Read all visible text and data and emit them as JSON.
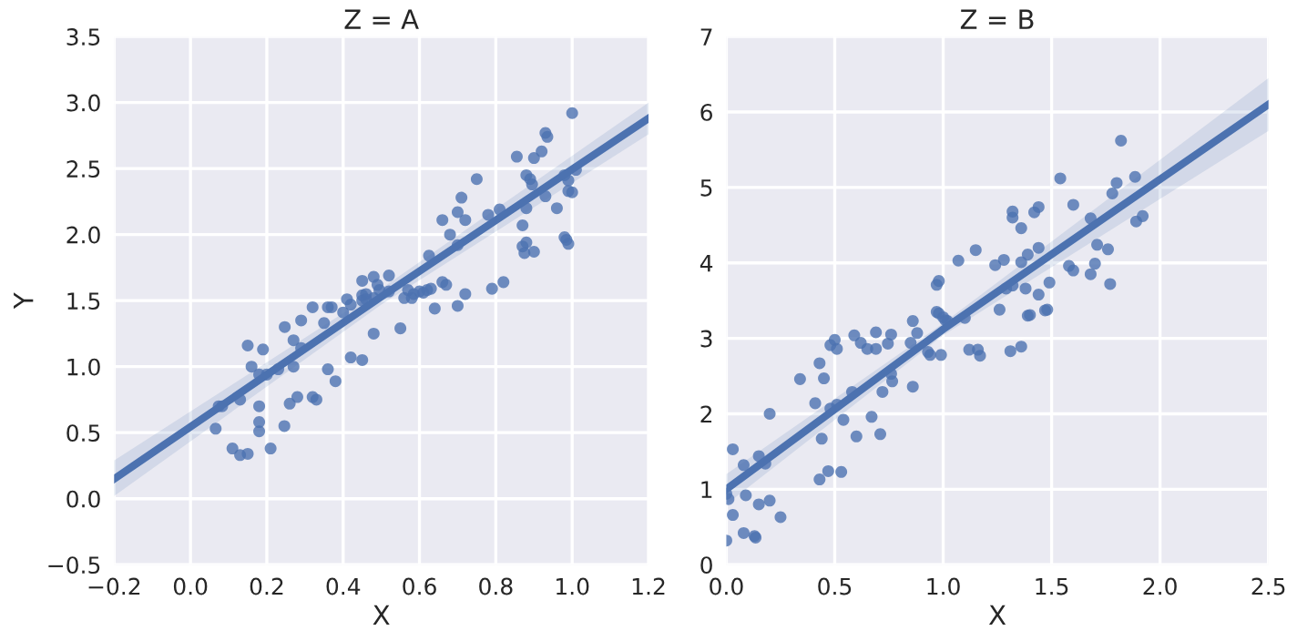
{
  "chart_data": [
    {
      "type": "scatter",
      "title": "Z = A",
      "xlabel": "X",
      "ylabel": "Y",
      "xlim": [
        -0.2,
        1.2
      ],
      "xticks": [
        {
          "value": -0.2,
          "label": "−0.2"
        },
        {
          "value": 0,
          "label": "0.0"
        },
        0.2,
        0.4,
        0.6,
        0.8,
        {
          "value": 1,
          "label": "1.0"
        },
        1.2
      ],
      "ylim": [
        -0.5,
        3.5
      ],
      "yticks": [
        {
          "value": -0.5,
          "label": "−0.5"
        },
        {
          "value": 0,
          "label": "0.0"
        },
        0.5,
        {
          "value": 1,
          "label": "1.0"
        },
        1.5,
        {
          "value": 2,
          "label": "2.0"
        },
        2.5,
        {
          "value": 3,
          "label": "3.0"
        },
        3.5
      ],
      "grid": true,
      "marker": "circle",
      "series": [
        {
          "color": "#4c72b0",
          "x": [
            0.074,
            0.083,
            0.066,
            0.11,
            0.13,
            0.15,
            0.15,
            0.16,
            0.19,
            0.18,
            0.13,
            0.18,
            0.18,
            0.18,
            0.2,
            0.21,
            0.23,
            0.247,
            0.246,
            0.27,
            0.26,
            0.28,
            0.29,
            0.29,
            0.27,
            0.32,
            0.33,
            0.32,
            0.35,
            0.36,
            0.37,
            0.36,
            0.38,
            0.4,
            0.41,
            0.42,
            0.42,
            0.45,
            0.45,
            0.46,
            0.48,
            0.48,
            0.55,
            0.56,
            0.58,
            0.585,
            0.61,
            0.64,
            0.72,
            1.0,
            0.93,
            0.935,
            0.92,
            0.9,
            0.855,
            0.75,
            0.71,
            0.88,
            0.89,
            0.895,
            1.01,
            0.98,
            0.99,
            0.99,
            1.0,
            0.93,
            0.96,
            0.88,
            0.87,
            0.81,
            0.78,
            0.66,
            0.7,
            0.72,
            0.68,
            0.7,
            0.98,
            0.985,
            0.99,
            0.88,
            0.9,
            0.87,
            0.875,
            0.625,
            0.63,
            0.66,
            0.67,
            0.79,
            0.82,
            0.7,
            0.48,
            0.49,
            0.495,
            0.52,
            0.45,
            0.45,
            0.46,
            0.52,
            0.57,
            0.6,
            0.62
          ],
          "values": [
            0.7,
            0.7,
            0.53,
            0.38,
            0.33,
            0.34,
            1.16,
            1.0,
            1.13,
            0.94,
            0.75,
            0.7,
            0.58,
            0.51,
            0.94,
            0.38,
            0.98,
            1.3,
            0.55,
            1.2,
            0.72,
            0.77,
            1.35,
            1.14,
            1.0,
            0.77,
            0.75,
            1.45,
            1.33,
            1.45,
            1.45,
            0.98,
            0.89,
            1.41,
            1.51,
            1.07,
            1.47,
            1.05,
            1.5,
            1.55,
            1.25,
            1.52,
            1.29,
            1.52,
            1.52,
            1.55,
            1.56,
            1.44,
            1.55,
            2.92,
            2.77,
            2.74,
            2.63,
            2.58,
            2.59,
            2.42,
            2.28,
            2.45,
            2.42,
            2.38,
            2.49,
            2.45,
            2.41,
            2.33,
            2.32,
            2.29,
            2.2,
            2.2,
            2.07,
            2.19,
            2.15,
            2.11,
            2.17,
            2.11,
            2.0,
            1.92,
            1.98,
            1.96,
            1.93,
            1.94,
            1.87,
            1.91,
            1.86,
            1.84,
            1.59,
            1.64,
            1.62,
            1.59,
            1.64,
            1.46,
            1.68,
            1.62,
            1.58,
            1.69,
            1.65,
            1.54,
            1.51,
            1.57,
            1.58,
            1.57,
            1.58
          ]
        },
        {
          "type": "line",
          "color": "#4c72b0",
          "marker": "none",
          "x": [
            -0.2,
            0.5,
            1.2
          ],
          "values": [
            0.15,
            1.53,
            2.88
          ],
          "lower": [
            0.02,
            1.47,
            2.76
          ],
          "upper": [
            0.29,
            1.59,
            3.0
          ]
        }
      ]
    },
    {
      "type": "scatter",
      "title": "Z = B",
      "xlabel": "X",
      "xlim": [
        0.0,
        2.5
      ],
      "xticks": [
        {
          "value": 0,
          "label": "0.0"
        },
        0.5,
        {
          "value": 1,
          "label": "1.0"
        },
        1.5,
        {
          "value": 2,
          "label": "2.0"
        },
        2.5
      ],
      "ylim": [
        0,
        7
      ],
      "yticks": [
        0,
        1,
        2,
        3,
        4,
        5,
        6,
        7
      ],
      "grid": true,
      "marker": "circle",
      "series": [
        {
          "color": "#4c72b0",
          "x": [
            1.82,
            1.885,
            1.8,
            1.78,
            1.92,
            1.89,
            1.54,
            1.6,
            1.44,
            1.42,
            1.32,
            1.32,
            1.36,
            1.68,
            1.71,
            1.76,
            1.44,
            1.39,
            1.15,
            1.07,
            1.28,
            1.36,
            1.24,
            1.58,
            1.6,
            1.7,
            1.68,
            1.77,
            1.49,
            1.38,
            1.44,
            1.32,
            1.29,
            0.97,
            0.98,
            1.26,
            1.4,
            1.48,
            0.97,
            1.0,
            1.47,
            1.39,
            1.36,
            1.31,
            0.98,
            1.01,
            1.02,
            1.1,
            1.12,
            1.16,
            1.17,
            0.99,
            0.94,
            0.93,
            0.86,
            0.88,
            0.85,
            0.86,
            0.76,
            0.745,
            0.69,
            0.69,
            0.65,
            0.62,
            0.59,
            0.5,
            0.48,
            0.51,
            0.76,
            0.765,
            0.72,
            0.58,
            0.67,
            0.71,
            0.6,
            0.54,
            0.51,
            0.48,
            0.44,
            0.45,
            0.43,
            0.41,
            0.34,
            0.2,
            0.47,
            0.53,
            0.43,
            0.15,
            0.18,
            0.08,
            0.03,
            0.0,
            0.01,
            0.15,
            0.2,
            0.09,
            0.03,
            0.25,
            0.08,
            0.13,
            0.135,
            0.0
          ],
          "values": [
            5.62,
            5.14,
            5.06,
            4.92,
            4.62,
            4.55,
            5.12,
            4.77,
            4.74,
            4.67,
            4.68,
            4.6,
            4.46,
            4.59,
            4.24,
            4.18,
            4.2,
            4.11,
            4.17,
            4.03,
            4.04,
            4.01,
            3.97,
            3.96,
            3.9,
            3.99,
            3.85,
            3.72,
            3.74,
            3.66,
            3.58,
            3.7,
            3.66,
            3.71,
            3.76,
            3.38,
            3.31,
            3.38,
            3.35,
            3.28,
            3.37,
            3.3,
            2.89,
            2.83,
            3.33,
            3.24,
            3.23,
            3.27,
            2.85,
            2.85,
            2.77,
            2.78,
            2.78,
            2.82,
            3.23,
            3.07,
            2.94,
            2.36,
            3.05,
            2.93,
            3.08,
            2.86,
            2.86,
            2.94,
            3.04,
            2.98,
            2.91,
            2.86,
            2.53,
            2.43,
            2.29,
            2.29,
            1.96,
            1.73,
            1.7,
            1.92,
            2.12,
            2.07,
            1.67,
            2.47,
            2.67,
            2.14,
            2.46,
            2.0,
            1.24,
            1.23,
            1.13,
            1.44,
            1.34,
            1.32,
            1.53,
            0.94,
            0.87,
            0.8,
            0.85,
            0.92,
            0.66,
            0.63,
            0.42,
            0.38,
            0.36,
            0.32
          ]
        },
        {
          "type": "line",
          "color": "#4c72b0",
          "marker": "none",
          "x": [
            0.0,
            1.0,
            2.5
          ],
          "values": [
            1.0,
            3.12,
            6.1
          ],
          "lower": [
            0.8,
            3.04,
            5.75
          ],
          "upper": [
            1.2,
            3.2,
            6.45
          ]
        }
      ]
    }
  ]
}
